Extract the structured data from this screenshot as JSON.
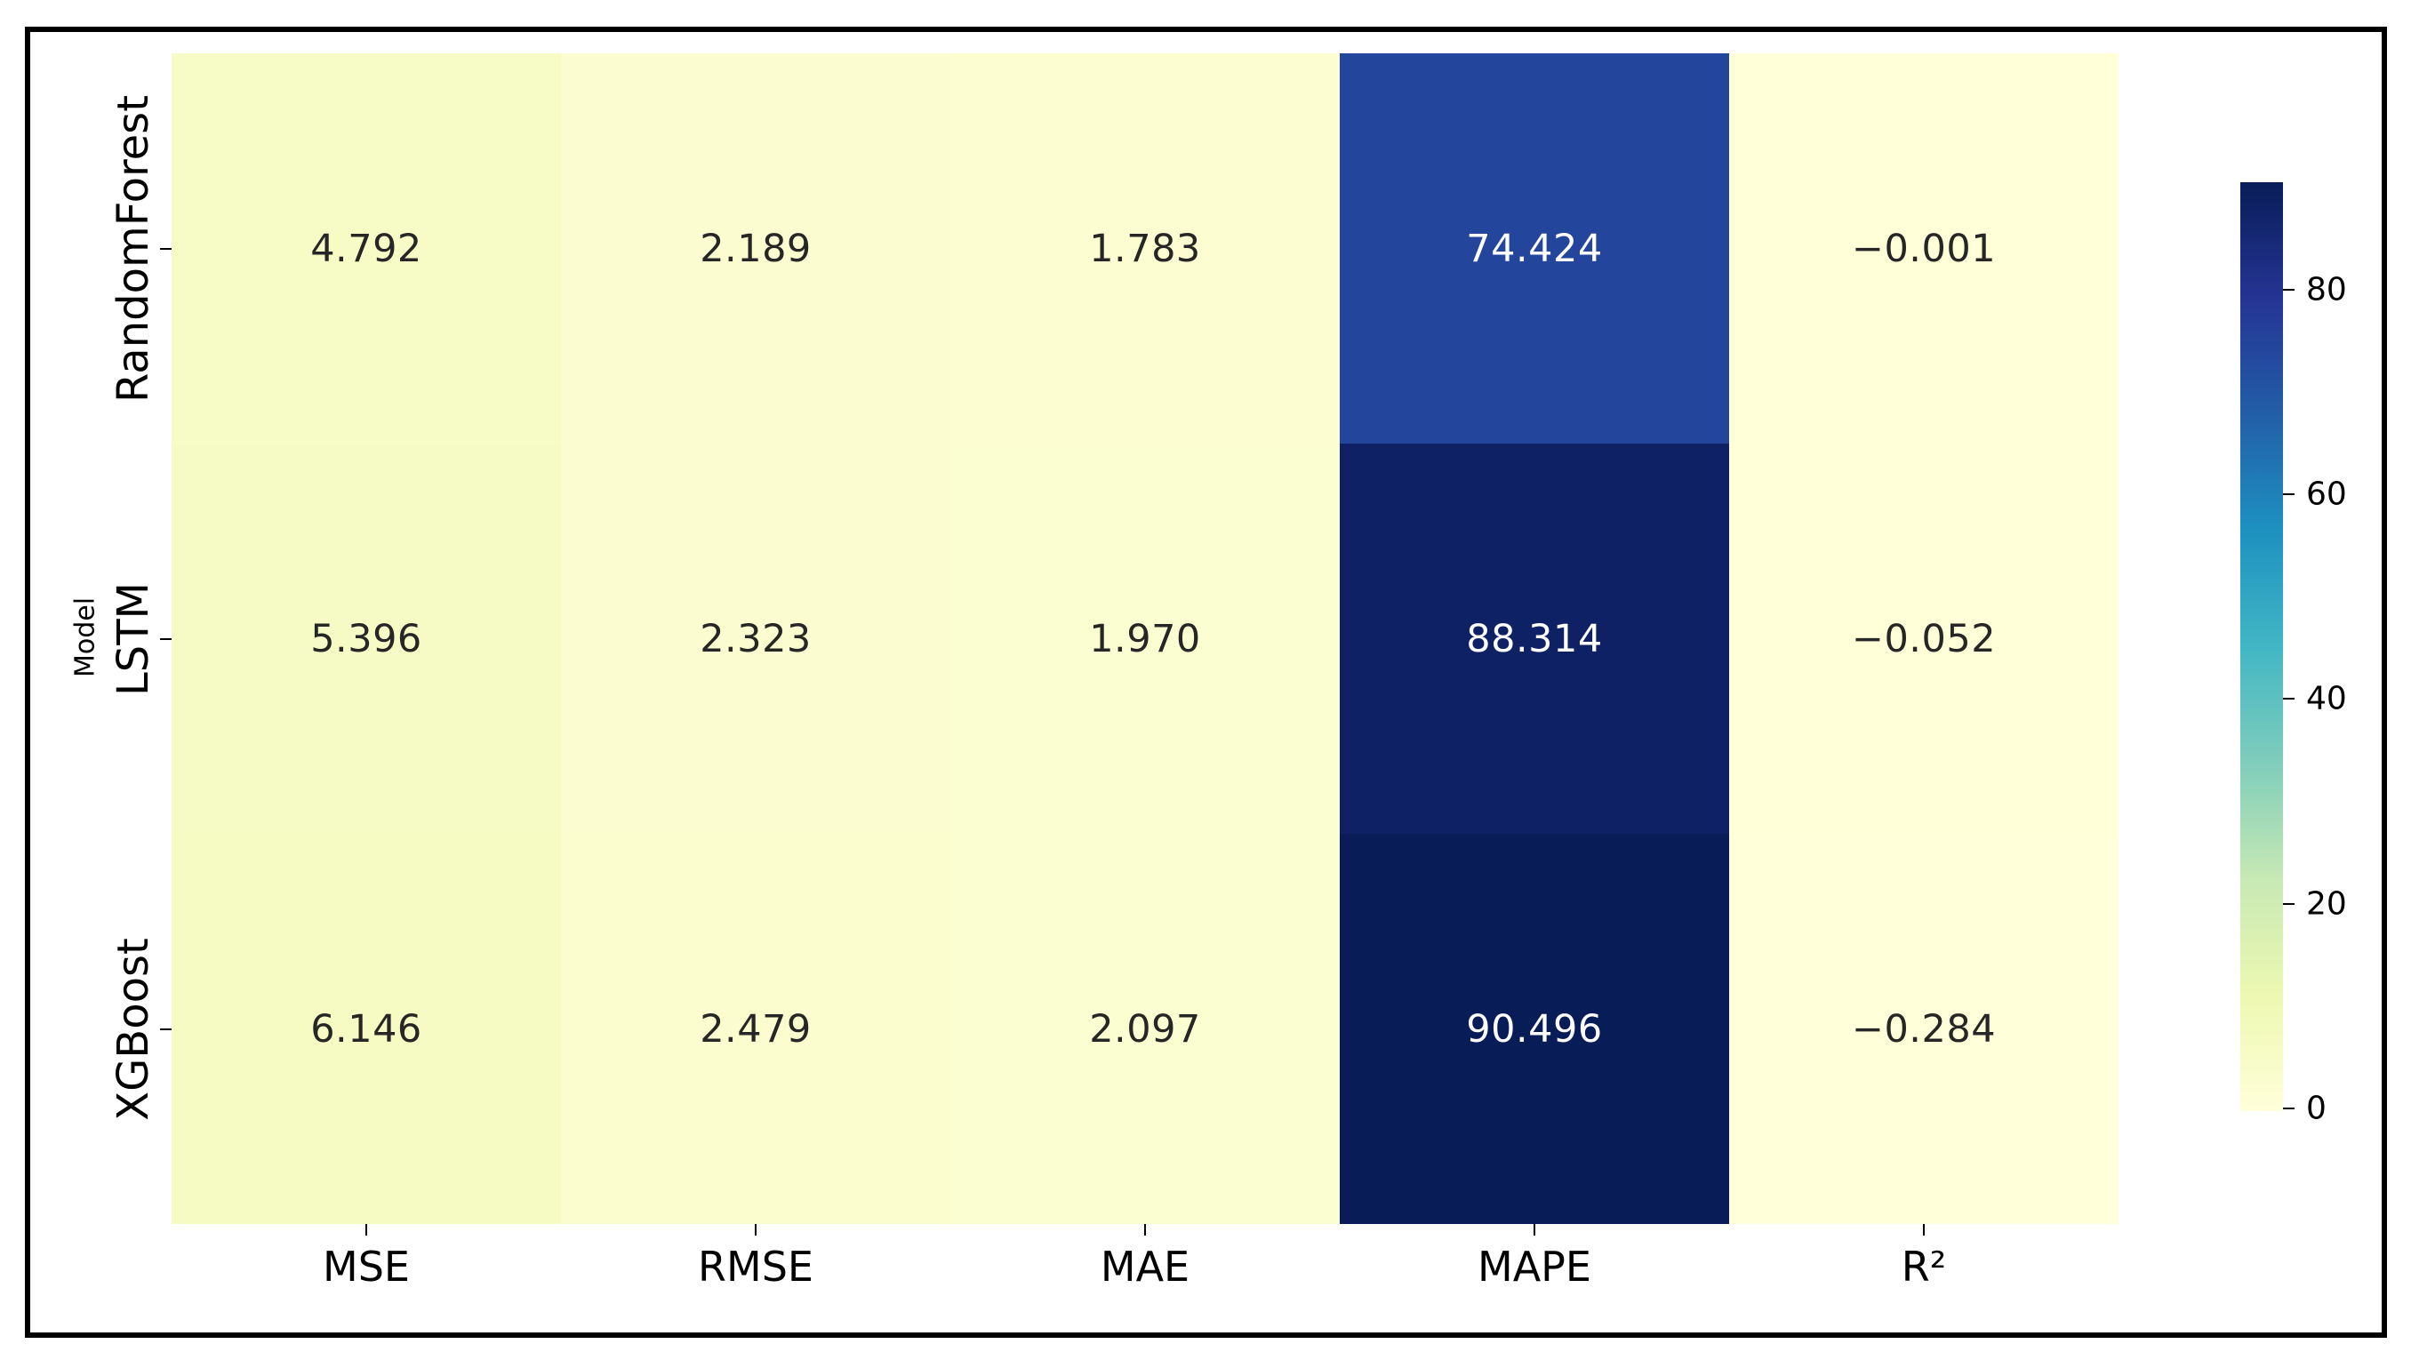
{
  "figure": {
    "background": "#ffffff",
    "frame_color": "#000000"
  },
  "chart_data": {
    "type": "heatmap",
    "title": "",
    "xlabel": "",
    "ylabel": "Model",
    "rows": [
      "RandomForest",
      "LSTM",
      "XGBoost"
    ],
    "columns": [
      "MSE",
      "RMSE",
      "MAE",
      "MAPE",
      "R²"
    ],
    "values": [
      [
        4.792,
        2.189,
        1.783,
        74.424,
        -0.001
      ],
      [
        5.396,
        2.323,
        1.97,
        88.314,
        -0.052
      ],
      [
        6.146,
        2.479,
        2.097,
        90.496,
        -0.284
      ]
    ],
    "annotation_decimals": 3,
    "value_range": [
      -0.284,
      90.496
    ],
    "colormap": {
      "name": "YlGnBu",
      "stops": [
        "#ffffd9",
        "#edf8b1",
        "#c7e9b4",
        "#7fcdbb",
        "#41b6c4",
        "#1d91c0",
        "#225ea8",
        "#253494",
        "#081d58"
      ]
    },
    "colorbar": {
      "position": "right",
      "ticks": [
        0,
        20,
        40,
        60,
        80
      ]
    },
    "annotation_colors": {
      "dark": "#262626",
      "light": "#ffffff"
    },
    "tick_color": "#000000",
    "legend": "none",
    "grid": false
  }
}
